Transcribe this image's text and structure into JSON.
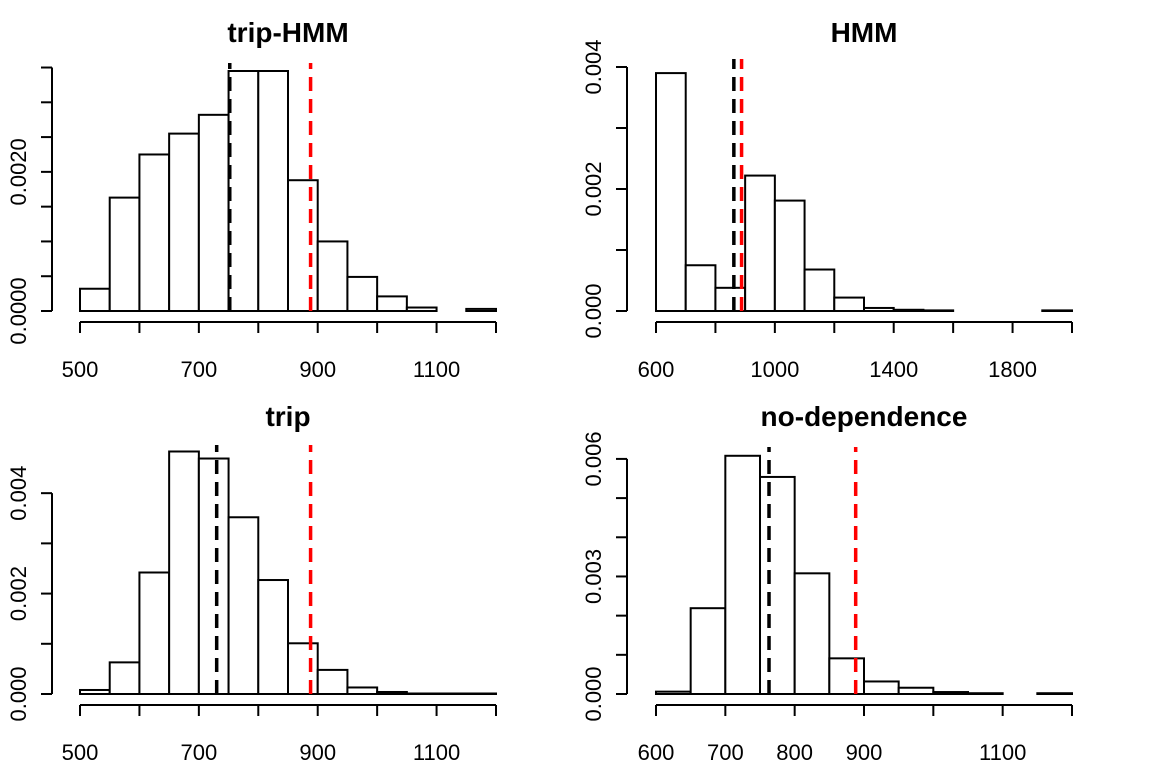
{
  "colors": {
    "black_line": "#000000",
    "red_line": "#ff0000"
  },
  "chart_data": [
    {
      "type": "bar",
      "title": "trip-HMM",
      "bin_edges": [
        500,
        550,
        600,
        650,
        700,
        750,
        800,
        850,
        900,
        950,
        1000,
        1050,
        1100,
        1150,
        1200
      ],
      "values": [
        0.00032,
        0.00163,
        0.00225,
        0.00255,
        0.00282,
        0.00345,
        0.00345,
        0.00188,
        0.001,
        0.00049,
        0.00021,
        5e-05,
        0.0,
        3e-05
      ],
      "xlim": [
        500,
        1200
      ],
      "ylim": [
        0,
        0.00345
      ],
      "x_ticks": [
        500,
        600,
        700,
        800,
        900,
        1000,
        1100,
        1200
      ],
      "x_tick_labels": [
        "500",
        "",
        "700",
        "",
        "900",
        "",
        "1100",
        ""
      ],
      "y_ticks": [
        0,
        0.0005,
        0.001,
        0.0015,
        0.002,
        0.0025,
        0.003,
        0.0035
      ],
      "y_tick_labels": [
        "0.0000",
        "",
        "",
        "",
        "0.0020",
        "",
        "",
        ""
      ],
      "reference_lines": [
        {
          "x": 752,
          "color": "black"
        },
        {
          "x": 888,
          "color": "red"
        }
      ]
    },
    {
      "type": "bar",
      "title": "HMM",
      "bin_edges": [
        600,
        700,
        800,
        900,
        1000,
        1100,
        1200,
        1300,
        1400,
        1500,
        1600,
        1700,
        1800,
        1900,
        2000
      ],
      "values": [
        0.0039,
        0.00075,
        0.00038,
        0.00222,
        0.00181,
        0.00068,
        0.00022,
        5e-05,
        2e-05,
        1e-05,
        0.0,
        0.0,
        0.0,
        1e-05
      ],
      "xlim": [
        600,
        2000
      ],
      "ylim": [
        0,
        0.004
      ],
      "x_ticks": [
        600,
        800,
        1000,
        1200,
        1400,
        1600,
        1800,
        2000
      ],
      "x_tick_labels": [
        "600",
        "",
        "1000",
        "",
        "1400",
        "",
        "1800",
        ""
      ],
      "y_ticks": [
        0,
        0.001,
        0.002,
        0.003,
        0.004
      ],
      "y_tick_labels": [
        "0.000",
        "",
        "0.002",
        "",
        "0.004"
      ],
      "reference_lines": [
        {
          "x": 862,
          "color": "black"
        },
        {
          "x": 888,
          "color": "red"
        }
      ]
    },
    {
      "type": "bar",
      "title": "trip",
      "bin_edges": [
        500,
        550,
        600,
        650,
        700,
        750,
        800,
        850,
        900,
        950,
        1000,
        1050,
        1100,
        1150,
        1200
      ],
      "values": [
        8e-05,
        0.00063,
        0.00242,
        0.00483,
        0.00469,
        0.00352,
        0.00227,
        0.00101,
        0.00048,
        0.00013,
        4e-05,
        1e-05,
        1e-05,
        1e-05
      ],
      "xlim": [
        500,
        1200
      ],
      "ylim": [
        0,
        0.0048
      ],
      "x_ticks": [
        500,
        600,
        700,
        800,
        900,
        1000,
        1100,
        1200
      ],
      "x_tick_labels": [
        "500",
        "",
        "700",
        "",
        "900",
        "",
        "1100",
        ""
      ],
      "y_ticks": [
        0,
        0.001,
        0.002,
        0.003,
        0.004
      ],
      "y_tick_labels": [
        "0.000",
        "",
        "0.002",
        "",
        "0.004"
      ],
      "reference_lines": [
        {
          "x": 730,
          "color": "black"
        },
        {
          "x": 888,
          "color": "red"
        }
      ]
    },
    {
      "type": "bar",
      "title": "no-dependence",
      "bin_edges": [
        600,
        650,
        700,
        750,
        800,
        850,
        900,
        950,
        1000,
        1050,
        1100,
        1150,
        1200
      ],
      "values": [
        6e-05,
        0.00219,
        0.00608,
        0.00554,
        0.00308,
        0.00091,
        0.00032,
        0.00016,
        5e-05,
        2e-05,
        0.0,
        2e-05
      ],
      "xlim": [
        600,
        1200
      ],
      "ylim": [
        0,
        0.0061
      ],
      "x_ticks": [
        600,
        700,
        800,
        900,
        1000,
        1100,
        1200
      ],
      "x_tick_labels": [
        "600",
        "700",
        "800",
        "900",
        "",
        "1100",
        ""
      ],
      "y_ticks": [
        0,
        0.001,
        0.002,
        0.003,
        0.004,
        0.005,
        0.006
      ],
      "y_tick_labels": [
        "0.000",
        "",
        "",
        "0.003",
        "",
        "",
        "0.006"
      ],
      "reference_lines": [
        {
          "x": 763,
          "color": "black"
        },
        {
          "x": 888,
          "color": "red"
        }
      ]
    }
  ]
}
